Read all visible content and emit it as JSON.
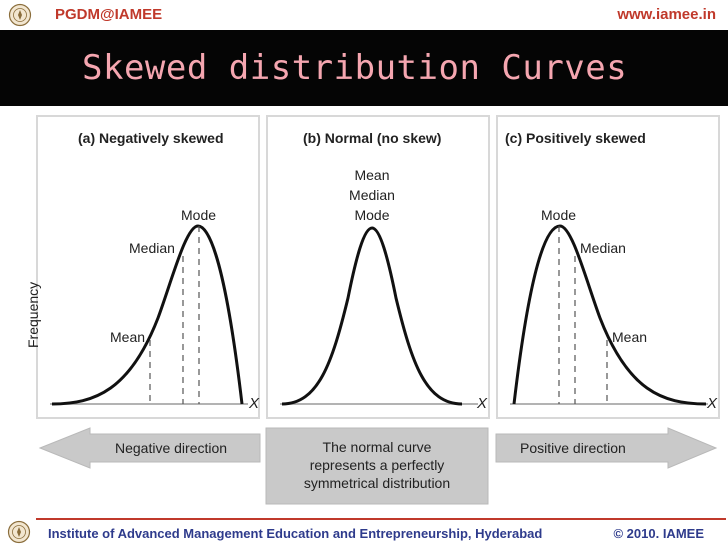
{
  "header": {
    "program": "PGDM@IAMEE",
    "website": "www.iamee.in"
  },
  "slide": {
    "title": "Skewed distribution Curves"
  },
  "diagram": {
    "y_axis_label": "Frequency",
    "x_axis_label": "X",
    "panels": [
      {
        "title": "(a) Negatively skewed",
        "labels": {
          "mean": "Mean",
          "median": "Median",
          "mode": "Mode"
        }
      },
      {
        "title": "(b) Normal (no skew)",
        "labels": {
          "mean": "Mean",
          "median": "Median",
          "mode": "Mode"
        }
      },
      {
        "title": "(c) Positively skewed",
        "labels": {
          "mean": "Mean",
          "median": "Median",
          "mode": "Mode"
        }
      }
    ],
    "directions": {
      "negative": "Negative direction",
      "positive": "Positive direction",
      "normal_line1": "The normal curve",
      "normal_line2": "represents a perfectly",
      "normal_line3": "symmetrical distribution"
    }
  },
  "footer": {
    "institute": "Institute of Advanced Management Education and Entrepreneurship, Hyderabad",
    "copyright": "© 2010. IAMEE"
  },
  "colors": {
    "accent_red": "#c0392b",
    "footer_blue": "#2e3b8c",
    "title_pink": "#f5a6b0",
    "arrow_grey": "#c9c9c9"
  },
  "icons": {
    "logo": "institute-seal-icon"
  }
}
